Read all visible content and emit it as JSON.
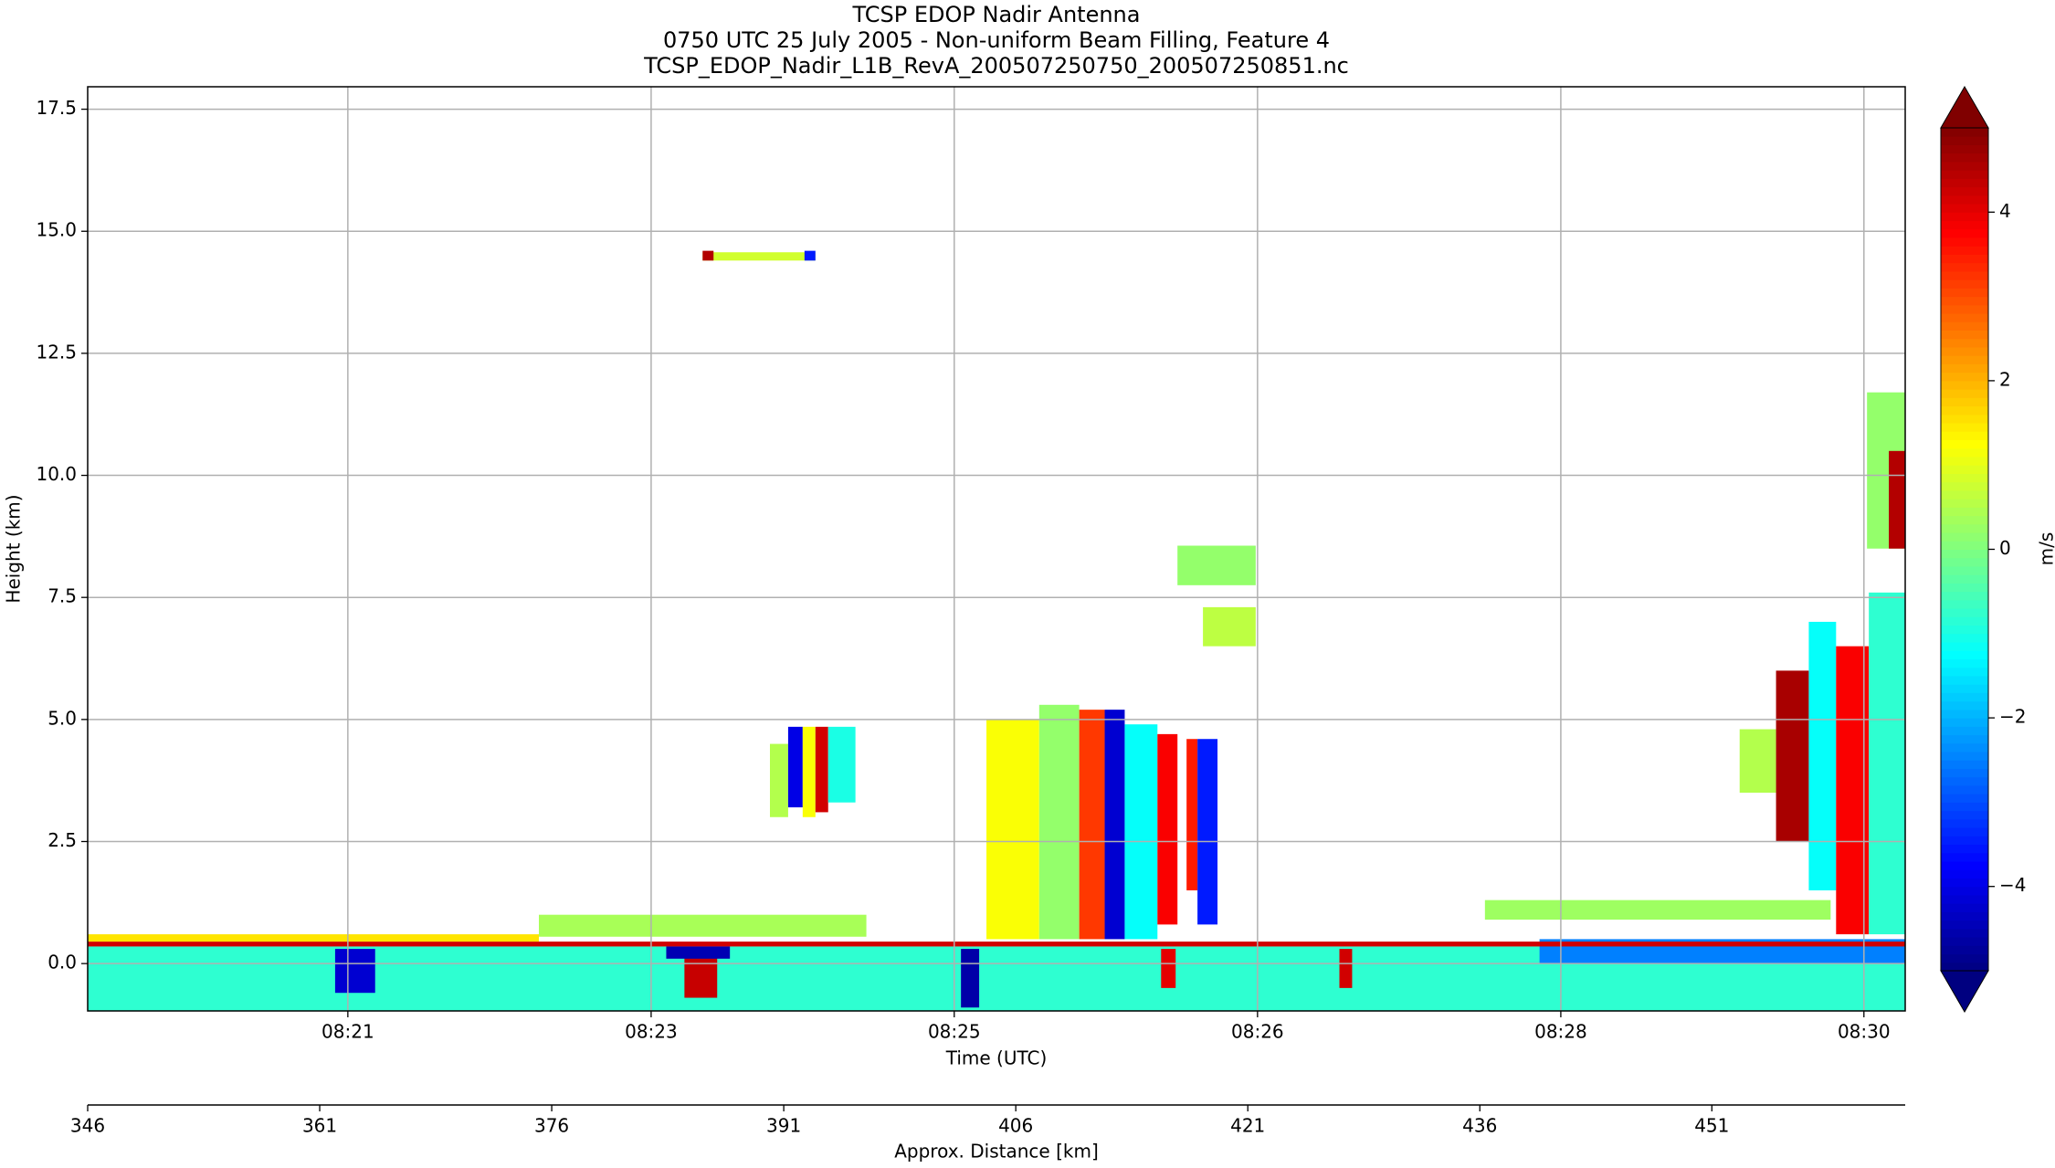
{
  "chart_data": {
    "type": "heatmap",
    "title": [
      "TCSP EDOP Nadir Antenna",
      "0750 UTC 25 July 2005 - Non-uniform Beam Filling, Feature 4",
      "TCSP_EDOP_Nadir_L1B_RevA_200507250750_200507250851.nc"
    ],
    "xlabel": "Time (UTC)",
    "ylabel": "Height (km)",
    "xlim": [
      20.32,
      30.31
    ],
    "xticks": [
      {
        "value": 21.75,
        "label": "08:21"
      },
      {
        "value": 23.417,
        "label": "08:23"
      },
      {
        "value": 25.083,
        "label": "08:25"
      },
      {
        "value": 26.75,
        "label": "08:26"
      },
      {
        "value": 28.417,
        "label": "08:28"
      },
      {
        "value": 30.083,
        "label": "08:30"
      }
    ],
    "ylim": [
      -0.97,
      17.96
    ],
    "yticks": [
      {
        "value": 0,
        "label": "0.0"
      },
      2.5,
      {
        "value": 5,
        "label": "5.0"
      },
      7.5,
      {
        "value": 10,
        "label": "10.0"
      },
      12.5,
      {
        "value": 15,
        "label": "15.0"
      },
      17.5
    ],
    "grid": true,
    "colormap": "jet",
    "clim": [
      -5,
      5
    ],
    "cbar_label": "m/s",
    "cbar_ticks": [
      {
        "value": -4,
        "label": "−4"
      },
      {
        "value": -2,
        "label": "−2"
      },
      0,
      2,
      4
    ],
    "cbar_extend": "both",
    "secondary_x": {
      "label": "Approx. Distance [km]",
      "xlim": [
        346,
        463.5
      ],
      "xticks": [
        346,
        361,
        376,
        391,
        406,
        421,
        436,
        451
      ]
    },
    "patches": [
      {
        "x": [
          20.32,
          30.31
        ],
        "y": [
          -0.97,
          0.35
        ],
        "value": -0.8
      },
      {
        "x": [
          28.3,
          30.31
        ],
        "y": [
          0,
          0.5
        ],
        "value": -2.5
      },
      {
        "x": [
          20.32,
          30.31
        ],
        "y": [
          0.35,
          0.45
        ],
        "value": 4.2
      },
      {
        "x": [
          20.32,
          22.8
        ],
        "y": [
          0.45,
          0.6
        ],
        "value": 1.5
      },
      {
        "x": [
          21.68,
          21.9
        ],
        "y": [
          -0.6,
          0.3
        ],
        "value": -4.2
      },
      {
        "x": [
          23.6,
          23.78
        ],
        "y": [
          -0.7,
          0.3
        ],
        "value": 4.3
      },
      {
        "x": [
          23.5,
          23.85
        ],
        "y": [
          0.1,
          0.35
        ],
        "value": -4.5
      },
      {
        "x": [
          25.12,
          25.22
        ],
        "y": [
          -0.9,
          0.3
        ],
        "value": -4.6
      },
      {
        "x": [
          26.22,
          26.3
        ],
        "y": [
          -0.5,
          0.3
        ],
        "value": 4
      },
      {
        "x": [
          27.2,
          27.27
        ],
        "y": [
          -0.5,
          0.3
        ],
        "value": 4.2
      },
      {
        "x": [
          22.8,
          24.6
        ],
        "y": [
          0.55,
          1.0
        ],
        "value": 0.4
      },
      {
        "x": [
          28.0,
          29.9
        ],
        "y": [
          0.9,
          1.3
        ],
        "value": 0.3
      },
      {
        "x": [
          23.7,
          24.32
        ],
        "y": [
          14.4,
          14.57
        ],
        "value": 0.8
      },
      {
        "x": [
          23.7,
          23.76
        ],
        "y": [
          14.4,
          14.6
        ],
        "value": 4.5
      },
      {
        "x": [
          24.26,
          24.32
        ],
        "y": [
          14.4,
          14.6
        ],
        "value": -3.5
      },
      {
        "x": [
          24.07,
          24.17
        ],
        "y": [
          3.0,
          4.5
        ],
        "value": 0.5
      },
      {
        "x": [
          24.17,
          24.25
        ],
        "y": [
          3.2,
          4.85
        ],
        "value": -4
      },
      {
        "x": [
          24.25,
          24.32
        ],
        "y": [
          3.0,
          4.85
        ],
        "value": 1.2
      },
      {
        "x": [
          24.32,
          24.39
        ],
        "y": [
          3.1,
          4.85
        ],
        "value": 4.2
      },
      {
        "x": [
          24.39,
          24.54
        ],
        "y": [
          3.3,
          4.85
        ],
        "value": -1
      },
      {
        "x": [
          25.26,
          25.55
        ],
        "y": [
          0.5,
          5.0
        ],
        "value": 1.2
      },
      {
        "x": [
          25.55,
          25.77
        ],
        "y": [
          0.5,
          5.3
        ],
        "value": 0.2
      },
      {
        "x": [
          25.77,
          25.91
        ],
        "y": [
          0.5,
          5.2
        ],
        "value": 3.2
      },
      {
        "x": [
          25.91,
          26.02
        ],
        "y": [
          0.5,
          5.2
        ],
        "value": -4.2
      },
      {
        "x": [
          26.02,
          26.2
        ],
        "y": [
          0.5,
          4.9
        ],
        "value": -1.2
      },
      {
        "x": [
          26.2,
          26.31
        ],
        "y": [
          0.8,
          4.7
        ],
        "value": 3.8
      },
      {
        "x": [
          26.36,
          26.42
        ],
        "y": [
          1.5,
          4.6
        ],
        "value": 3.5
      },
      {
        "x": [
          26.42,
          26.53
        ],
        "y": [
          0.8,
          4.6
        ],
        "value": -3.5
      },
      {
        "x": [
          26.31,
          26.74
        ],
        "y": [
          7.75,
          8.56
        ],
        "value": 0.2
      },
      {
        "x": [
          26.45,
          26.74
        ],
        "y": [
          6.5,
          7.3
        ],
        "value": 0.6
      },
      {
        "x": [
          29.4,
          29.6
        ],
        "y": [
          3.5,
          4.8
        ],
        "value": 0.5
      },
      {
        "x": [
          29.6,
          29.78
        ],
        "y": [
          2.5,
          6.0
        ],
        "value": 4.6
      },
      {
        "x": [
          29.78,
          29.93
        ],
        "y": [
          1.5,
          7.0
        ],
        "value": -1.2
      },
      {
        "x": [
          29.93,
          30.11
        ],
        "y": [
          0.6,
          6.5
        ],
        "value": 3.8
      },
      {
        "x": [
          30.11,
          30.31
        ],
        "y": [
          0.6,
          7.6
        ],
        "value": -0.8
      },
      {
        "x": [
          30.1,
          30.31
        ],
        "y": [
          8.5,
          11.7
        ],
        "value": 0.2
      },
      {
        "x": [
          30.22,
          30.31
        ],
        "y": [
          8.5,
          10.5
        ],
        "value": 4.5
      }
    ]
  }
}
